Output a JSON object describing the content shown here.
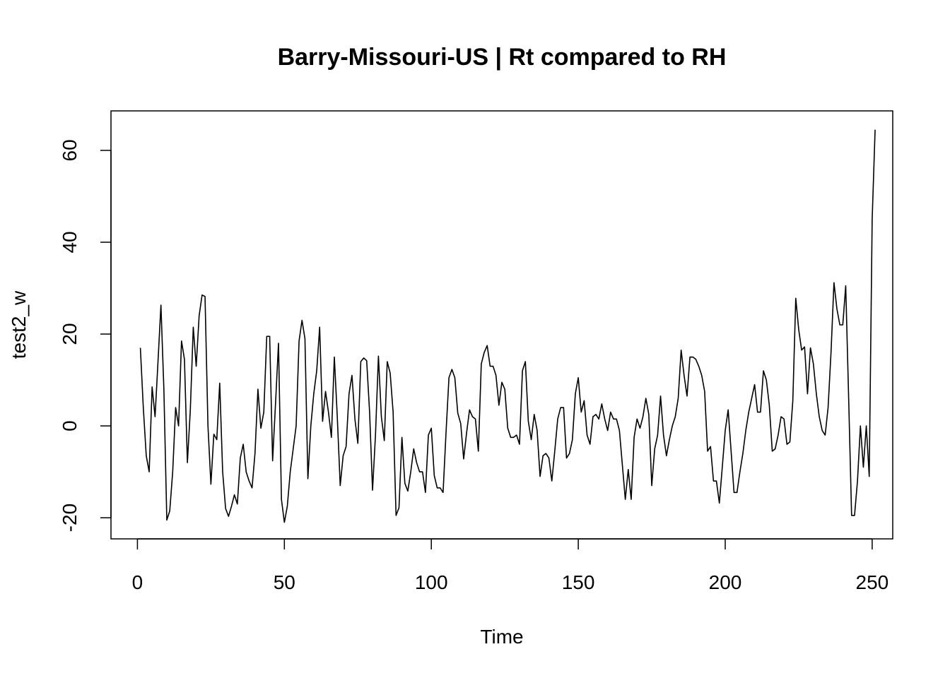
{
  "chart_data": {
    "type": "line",
    "title": "Barry-Missouri-US | Rt compared to RH",
    "xlabel": "Time",
    "ylabel": "test2_w",
    "xlim": [
      -9,
      257
    ],
    "ylim": [
      -24.6,
      68.6
    ],
    "x_ticks": [
      0,
      50,
      100,
      150,
      200,
      250
    ],
    "x_tick_labels": [
      "0",
      "50",
      "100",
      "150",
      "200",
      "250"
    ],
    "y_ticks": [
      -20,
      0,
      20,
      40,
      60
    ],
    "y_tick_labels": [
      "-20",
      "0",
      "20",
      "40",
      "60"
    ],
    "grid": false,
    "legend": "none",
    "line_color": "#000000",
    "series": [
      {
        "x_start": 1,
        "x_step": 1,
        "values": [
          17.0,
          4.0,
          -6.5,
          -10.0,
          8.5,
          2.0,
          14.0,
          26.3,
          8.0,
          -20.5,
          -18.5,
          -10.0,
          4.0,
          0.0,
          18.5,
          14.5,
          -8.0,
          3.5,
          21.5,
          13.0,
          24.0,
          28.5,
          28.2,
          0.0,
          -12.7,
          -1.8,
          -3.0,
          9.3,
          -10.0,
          -18.0,
          -19.7,
          -17.5,
          -15.0,
          -17.0,
          -7.0,
          -4.0,
          -10.0,
          -12.0,
          -13.5,
          -6.0,
          8.0,
          -0.5,
          3.0,
          19.5,
          19.5,
          -7.6,
          5.0,
          18.0,
          -16.0,
          -21.0,
          -17.5,
          -10.0,
          -5.0,
          0.0,
          18.5,
          23.0,
          19.0,
          -11.5,
          0.0,
          7.0,
          12.0,
          21.5,
          1.0,
          7.5,
          3.0,
          -2.5,
          15.0,
          2.0,
          -13.0,
          -6.5,
          -4.5,
          7.0,
          11.0,
          1.5,
          -3.8,
          14.0,
          14.8,
          14.2,
          3.0,
          -14.0,
          -2.0,
          15.2,
          2.0,
          -3.2,
          14.0,
          11.5,
          3.0,
          -19.5,
          -17.8,
          -2.5,
          -12.5,
          -14.2,
          -10.0,
          -5.0,
          -8.0,
          -10.0,
          -10.0,
          -14.5,
          -2.0,
          -0.5,
          -10.8,
          -13.5,
          -13.5,
          -14.5,
          -1.5,
          10.5,
          12.3,
          10.5,
          2.8,
          0.5,
          -7.2,
          -1.5,
          3.5,
          2.0,
          1.5,
          -5.5,
          13.5,
          16.0,
          17.5,
          13.0,
          13.0,
          11.0,
          4.5,
          9.5,
          8.0,
          -0.5,
          -2.5,
          -2.5,
          -2.0,
          -4.0,
          12.0,
          14.0,
          1.0,
          -3.0,
          2.5,
          -1.0,
          -11.0,
          -6.5,
          -6.0,
          -7.0,
          -12.0,
          -5.5,
          1.5,
          4.0,
          4.0,
          -7.0,
          -6.0,
          -3.0,
          7.0,
          10.5,
          3.0,
          5.5,
          -2.0,
          -4.0,
          2.0,
          2.5,
          1.5,
          4.8,
          1.5,
          -1.0,
          3.0,
          1.5,
          1.5,
          -1.0,
          -8.5,
          -16.0,
          -9.5,
          -16.0,
          -2.5,
          1.5,
          -0.5,
          2.0,
          6.0,
          2.5,
          -13.0,
          -5.0,
          -2.0,
          6.5,
          -2.0,
          -6.5,
          -3.0,
          0.0,
          2.0,
          6.0,
          16.5,
          11.0,
          6.5,
          15.0,
          15.0,
          14.5,
          13.0,
          11.0,
          7.5,
          -5.5,
          -4.5,
          -12.0,
          -12.0,
          -16.8,
          -9.0,
          -1.0,
          3.5,
          -5.5,
          -14.5,
          -14.5,
          -10.0,
          -6.0,
          -1.0,
          3.0,
          6.0,
          9.0,
          3.0,
          3.0,
          12.0,
          10.0,
          4.5,
          -5.5,
          -5.0,
          -2.0,
          2.0,
          1.5,
          -4.0,
          -3.5,
          5.5,
          27.8,
          21.0,
          16.5,
          17.2,
          7.0,
          17.0,
          13.5,
          7.0,
          2.0,
          -1.0,
          -2.0,
          4.0,
          16.0,
          31.2,
          25.5,
          22.0,
          22.0,
          30.5,
          6.0,
          -19.5,
          -19.5,
          -12.0,
          0.0,
          -9.0,
          0.0,
          -11.0,
          45.0,
          64.5
        ]
      }
    ]
  }
}
